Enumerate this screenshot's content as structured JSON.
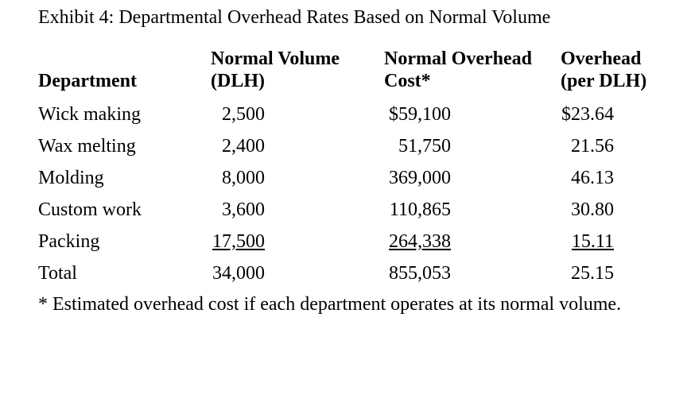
{
  "title": "Exhibit 4: Departmental Overhead Rates Based on Normal Volume",
  "table": {
    "columns": [
      {
        "line1": "",
        "line2": "Department"
      },
      {
        "line1": "Normal Volume",
        "line2": "(DLH)"
      },
      {
        "line1": "Normal Overhead",
        "line2": "Cost*"
      },
      {
        "line1": "Overhead",
        "line2": "(per DLH)"
      }
    ],
    "rows": [
      {
        "department": "Wick making",
        "volume": "2,500",
        "cost": "$59,100",
        "rate": "$23.64",
        "underline": false
      },
      {
        "department": "Wax melting",
        "volume": "2,400",
        "cost": "51,750",
        "rate": "21.56",
        "underline": false
      },
      {
        "department": "Molding",
        "volume": "8,000",
        "cost": "369,000",
        "rate": "46.13",
        "underline": false
      },
      {
        "department": "Custom work",
        "volume": "3,600",
        "cost": "110,865",
        "rate": "30.80",
        "underline": false
      },
      {
        "department": "Packing",
        "volume": "17,500",
        "cost": "264,338",
        "rate": "15.11",
        "underline": true
      },
      {
        "department": "Total",
        "volume": "34,000",
        "cost": "855,053",
        "rate": "25.15",
        "underline": false
      }
    ]
  },
  "footnote": "* Estimated overhead cost if each department operates at its normal volume.",
  "colors": {
    "text": "#000000",
    "background": "#ffffff"
  }
}
